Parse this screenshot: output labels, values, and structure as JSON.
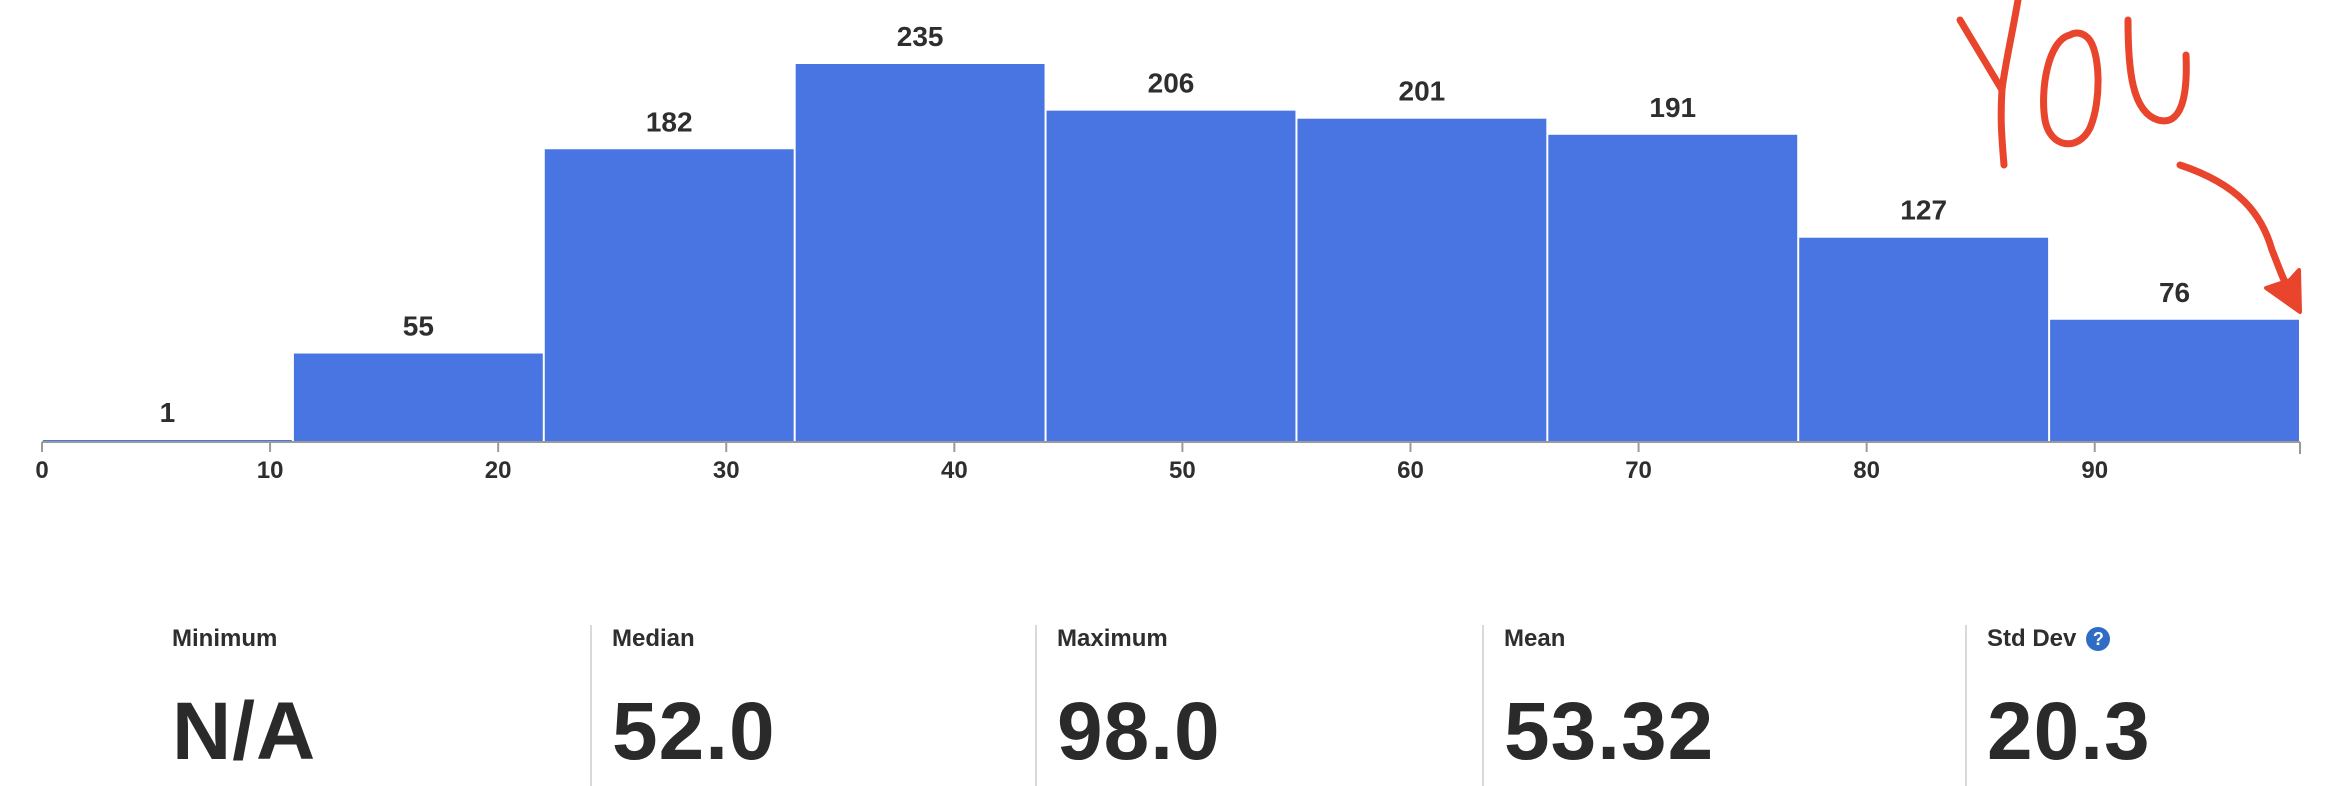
{
  "chart_data": {
    "type": "bar",
    "bin_edges": [
      0,
      11,
      22,
      33,
      44,
      55,
      66,
      77,
      88,
      99
    ],
    "values": [
      1,
      55,
      182,
      235,
      206,
      201,
      191,
      127,
      76
    ],
    "x_ticks": [
      0,
      10,
      20,
      30,
      40,
      50,
      60,
      70,
      80,
      90
    ],
    "xlim": [
      0,
      99
    ],
    "ylim": [
      0,
      235
    ],
    "bar_color": "#4875e1",
    "annotation": {
      "text": "YOU",
      "color": "#e8452c"
    }
  },
  "stats": [
    {
      "label": "Minimum",
      "value": "N/A"
    },
    {
      "label": "Median",
      "value": "52.0"
    },
    {
      "label": "Maximum",
      "value": "98.0"
    },
    {
      "label": "Mean",
      "value": "53.32"
    },
    {
      "label": "Std Dev",
      "value": "20.3",
      "icon": "help-icon"
    }
  ]
}
